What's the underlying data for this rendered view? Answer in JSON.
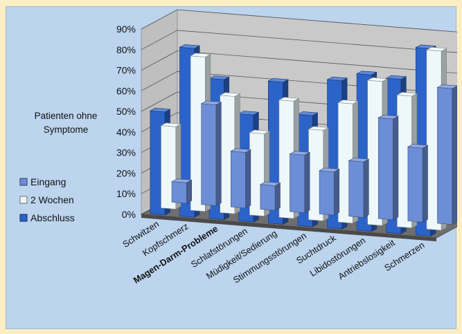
{
  "chart_data": {
    "type": "bar",
    "variant": "3d-clustered-column",
    "title": "",
    "xlabel": "",
    "ylabel": "Patienten ohne Symptome",
    "ylabel_lines": [
      "Patienten ohne",
      "Symptome"
    ],
    "ylim": [
      0,
      90
    ],
    "yticks": [
      "0%",
      "10%",
      "20%",
      "30%",
      "40%",
      "50%",
      "60%",
      "70%",
      "80%",
      "90%"
    ],
    "grid": true,
    "legend_position": "left",
    "categories": [
      "Schwitzen",
      "Kopfschmerz",
      "Magen-Darm-Probleme",
      "Schlafstörungen",
      "Müdigkeit/Sedierung",
      "Stimmungsstörungen",
      "Suchtdruck",
      "Libidostörungen",
      "Antriebslosigkeit",
      "Schmerzen"
    ],
    "bold_category": "Magen-Darm-Probleme",
    "series": [
      {
        "name": "Eingang",
        "color": "#6c8ed6",
        "values": [
          10,
          49,
          27,
          12,
          28,
          21,
          27,
          49,
          36,
          66
        ]
      },
      {
        "name": "2 Wochen",
        "color": "#eef8fa",
        "values": [
          40,
          75,
          57,
          40,
          57,
          44,
          58,
          70,
          64,
          87
        ]
      },
      {
        "name": "Abschluss",
        "color": "#2b63c8",
        "values": [
          50,
          82,
          68,
          52,
          69,
          54,
          72,
          76,
          75,
          91
        ]
      }
    ]
  }
}
